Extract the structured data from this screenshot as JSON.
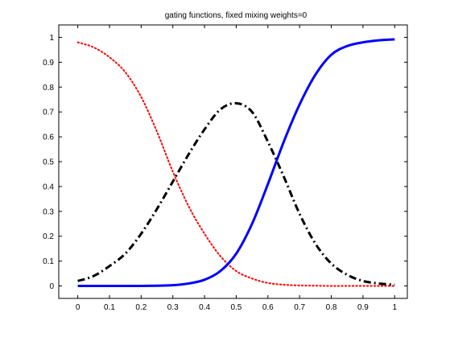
{
  "chart_data": {
    "type": "line",
    "title": "gating functions, fixed mixing weights=0",
    "xlabel": "",
    "ylabel": "",
    "xlim": [
      -0.06,
      1.04
    ],
    "ylim": [
      -0.05,
      1.05
    ],
    "grid": false,
    "xticks": [
      "0",
      "0.1",
      "0.2",
      "0.3",
      "0.4",
      "0.5",
      "0.6",
      "0.7",
      "0.8",
      "0.9",
      "1"
    ],
    "yticks": [
      "0",
      "0.1",
      "0.2",
      "0.3",
      "0.4",
      "0.5",
      "0.6",
      "0.7",
      "0.8",
      "0.9",
      "1"
    ],
    "x": [
      0,
      0.05,
      0.1,
      0.15,
      0.2,
      0.25,
      0.3,
      0.35,
      0.4,
      0.45,
      0.5,
      0.55,
      0.6,
      0.65,
      0.7,
      0.75,
      0.8,
      0.85,
      0.9,
      0.95,
      1
    ],
    "series": [
      {
        "color": "#ff0000",
        "style": "dotted",
        "values": [
          0.98,
          0.96,
          0.92,
          0.86,
          0.76,
          0.62,
          0.46,
          0.32,
          0.21,
          0.12,
          0.06,
          0.03,
          0.012,
          0.005,
          0.002,
          0.001,
          0.0,
          0.0,
          0.0,
          0.0,
          0.0
        ]
      },
      {
        "color": "#000000",
        "style": "dashdot",
        "values": [
          0.02,
          0.04,
          0.08,
          0.13,
          0.21,
          0.31,
          0.42,
          0.53,
          0.63,
          0.71,
          0.735,
          0.7,
          0.58,
          0.44,
          0.29,
          0.17,
          0.09,
          0.045,
          0.02,
          0.01,
          0.005
        ]
      },
      {
        "color": "#0000ff",
        "style": "solid",
        "values": [
          0.0,
          0.0,
          0.0,
          0.0,
          0.0,
          0.001,
          0.003,
          0.01,
          0.025,
          0.06,
          0.13,
          0.25,
          0.41,
          0.58,
          0.73,
          0.85,
          0.93,
          0.965,
          0.98,
          0.988,
          0.992
        ]
      }
    ]
  }
}
